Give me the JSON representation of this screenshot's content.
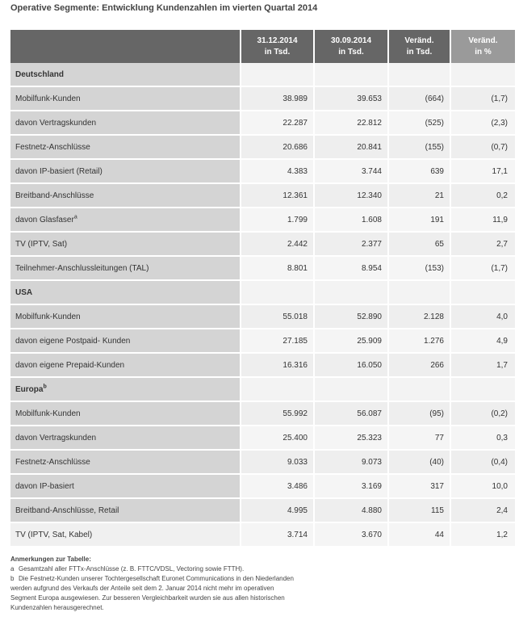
{
  "title": "Operative Segmente: Entwicklung Kundenzahlen im vierten Quartal 2014",
  "columns": {
    "c1": "31.12.2014\nin Tsd.",
    "c2": "30.09.2014\nin Tsd.",
    "c3": "Veränd.\nin Tsd.",
    "c4": "Veränd.\nin %"
  },
  "sections": [
    {
      "name": "Deutschland",
      "marker": "",
      "rows": [
        {
          "label": "Mobilfunk-Kunden",
          "marker": "",
          "v1": "38.989",
          "v2": "39.653",
          "v3": "(664)",
          "v4": "(1,7)"
        },
        {
          "label": "davon Vertragskunden",
          "marker": "",
          "v1": "22.287",
          "v2": "22.812",
          "v3": "(525)",
          "v4": "(2,3)"
        },
        {
          "label": "Festnetz-Anschlüsse",
          "marker": "",
          "v1": "20.686",
          "v2": "20.841",
          "v3": "(155)",
          "v4": "(0,7)"
        },
        {
          "label": "davon IP-basiert (Retail)",
          "marker": "",
          "v1": "4.383",
          "v2": "3.744",
          "v3": "639",
          "v4": "17,1"
        },
        {
          "label": "Breitband-Anschlüsse",
          "marker": "",
          "v1": "12.361",
          "v2": "12.340",
          "v3": "21",
          "v4": "0,2"
        },
        {
          "label": "davon Glasfaser",
          "marker": "a",
          "v1": "1.799",
          "v2": "1.608",
          "v3": "191",
          "v4": "11,9"
        },
        {
          "label": "TV (IPTV, Sat)",
          "marker": "",
          "v1": "2.442",
          "v2": "2.377",
          "v3": "65",
          "v4": "2,7"
        },
        {
          "label": "Teilnehmer-Anschlussleitungen (TAL)",
          "marker": "",
          "v1": "8.801",
          "v2": "8.954",
          "v3": "(153)",
          "v4": "(1,7)"
        }
      ]
    },
    {
      "name": "USA",
      "marker": "",
      "rows": [
        {
          "label": "Mobilfunk-Kunden",
          "marker": "",
          "v1": "55.018",
          "v2": "52.890",
          "v3": "2.128",
          "v4": "4,0"
        },
        {
          "label": "davon eigene Postpaid- Kunden",
          "marker": "",
          "v1": "27.185",
          "v2": "25.909",
          "v3": "1.276",
          "v4": "4,9"
        },
        {
          "label": "davon eigene Prepaid-Kunden",
          "marker": "",
          "v1": "16.316",
          "v2": "16.050",
          "v3": "266",
          "v4": "1,7"
        }
      ]
    },
    {
      "name": "Europa",
      "marker": "b",
      "rows": [
        {
          "label": "Mobilfunk-Kunden",
          "marker": "",
          "v1": "55.992",
          "v2": "56.087",
          "v3": "(95)",
          "v4": "(0,2)"
        },
        {
          "label": "davon Vertragskunden",
          "marker": "",
          "v1": "25.400",
          "v2": "25.323",
          "v3": "77",
          "v4": "0,3"
        },
        {
          "label": "Festnetz-Anschlüsse",
          "marker": "",
          "v1": "9.033",
          "v2": "9.073",
          "v3": "(40)",
          "v4": "(0,4)"
        },
        {
          "label": "davon IP-basiert",
          "marker": "",
          "v1": "3.486",
          "v2": "3.169",
          "v3": "317",
          "v4": "10,0"
        },
        {
          "label": "Breitband-Anschlüsse, Retail",
          "marker": "",
          "v1": "4.995",
          "v2": "4.880",
          "v3": "115",
          "v4": "2,4"
        },
        {
          "label": "TV (IPTV, Sat, Kabel)",
          "marker": "",
          "v1": "3.714",
          "v2": "3.670",
          "v3": "44",
          "v4": "1,2"
        }
      ]
    }
  ],
  "notes": {
    "title": "Anmerkungen zur Tabelle:",
    "items": [
      {
        "marker": "a",
        "lines": [
          "Gesamtzahl aller FTTx-Anschlüsse (z. B. FTTC/VDSL, Vectoring sowie FTTH)."
        ]
      },
      {
        "marker": "b",
        "lines": [
          "Die Festnetz-Kunden unserer Tochtergesellschaft Euronet Communications in den Niederlanden",
          "werden aufgrund des Verkaufs der Anteile seit dem 2. Januar 2014 nicht mehr im operativen",
          "Segment Europa ausgewiesen. Zur besseren Vergleichbarkeit wurden sie aus allen historischen",
          "Kundenzahlen herausgerechnet."
        ]
      }
    ]
  }
}
